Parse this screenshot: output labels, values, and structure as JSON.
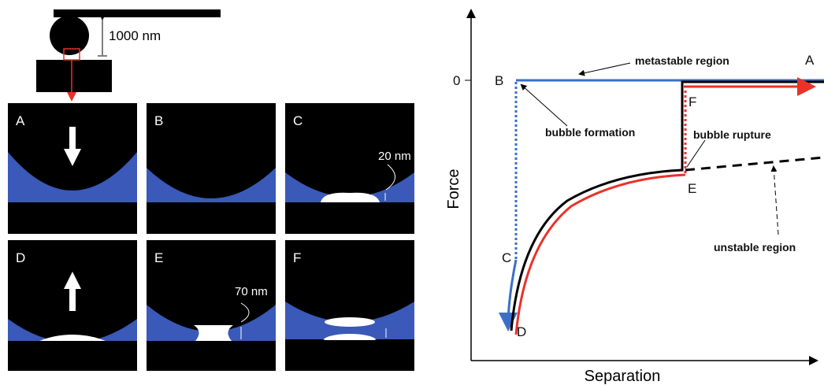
{
  "schematic": {
    "scale_label": "1000 nm",
    "panels": [
      {
        "label": "A"
      },
      {
        "label": "B"
      },
      {
        "label": "C",
        "annotation": "20 nm"
      },
      {
        "label": "D"
      },
      {
        "label": "E",
        "annotation": "70 nm"
      },
      {
        "label": "F"
      }
    ]
  },
  "plot": {
    "y_axis_label": "Force",
    "x_axis_label": "Separation",
    "zero_label": "0",
    "points": [
      "A",
      "B",
      "C",
      "D",
      "E",
      "F"
    ],
    "annotations": [
      "metastable region",
      "bubble formation",
      "bubble rupture",
      "unstable region"
    ]
  }
}
